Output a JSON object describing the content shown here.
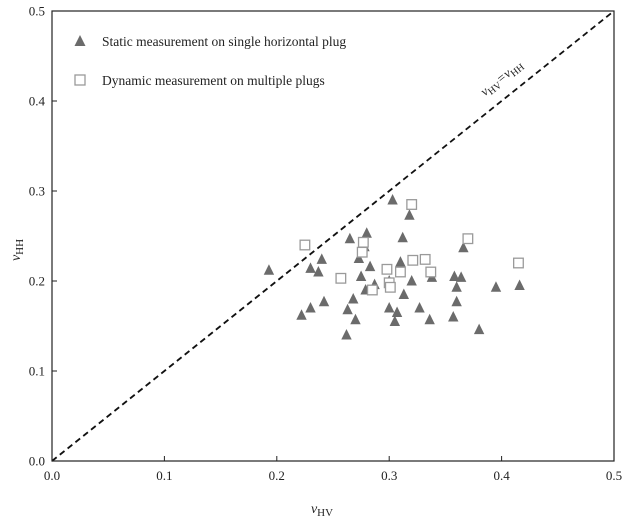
{
  "chart_data": {
    "type": "scatter",
    "title": "",
    "xlabel": "ν_HV",
    "ylabel": "ν_HH",
    "xlabel_main": "ν",
    "xlabel_sub": "HV",
    "ylabel_main": "ν",
    "ylabel_sub": "HH",
    "xlim": [
      0,
      0.5
    ],
    "ylim": [
      0,
      0.5
    ],
    "xticks": [
      0.0,
      0.1,
      0.2,
      0.3,
      0.4,
      0.5
    ],
    "yticks": [
      0.0,
      0.1,
      0.2,
      0.3,
      0.4,
      0.5
    ],
    "xtick_labels": [
      "0.0",
      "0.1",
      "0.2",
      "0.3",
      "0.4",
      "0.5"
    ],
    "ytick_labels": [
      "0.0",
      "0.1",
      "0.2",
      "0.3",
      "0.4",
      "0.5"
    ],
    "grid": false,
    "legend_position": "top-left",
    "reference_line": {
      "label_main_1": "ν",
      "label_sub_1": "HV",
      "label_eq": "=",
      "label_main_2": "ν",
      "label_sub_2": "HH",
      "x": [
        0,
        0.5
      ],
      "y": [
        0,
        0.5
      ]
    },
    "series": [
      {
        "name": "Static measurement on single horizontal plug",
        "marker": "filled-triangle",
        "color": "#6b6b6b",
        "points": [
          [
            0.193,
            0.212
          ],
          [
            0.222,
            0.162
          ],
          [
            0.23,
            0.214
          ],
          [
            0.23,
            0.17
          ],
          [
            0.237,
            0.21
          ],
          [
            0.24,
            0.224
          ],
          [
            0.242,
            0.177
          ],
          [
            0.262,
            0.14
          ],
          [
            0.263,
            0.168
          ],
          [
            0.265,
            0.247
          ],
          [
            0.268,
            0.18
          ],
          [
            0.27,
            0.157
          ],
          [
            0.273,
            0.225
          ],
          [
            0.275,
            0.205
          ],
          [
            0.278,
            0.238
          ],
          [
            0.279,
            0.19
          ],
          [
            0.28,
            0.253
          ],
          [
            0.283,
            0.216
          ],
          [
            0.287,
            0.196
          ],
          [
            0.3,
            0.2
          ],
          [
            0.3,
            0.17
          ],
          [
            0.303,
            0.29
          ],
          [
            0.305,
            0.155
          ],
          [
            0.307,
            0.165
          ],
          [
            0.31,
            0.221
          ],
          [
            0.312,
            0.248
          ],
          [
            0.313,
            0.185
          ],
          [
            0.318,
            0.273
          ],
          [
            0.32,
            0.2
          ],
          [
            0.327,
            0.17
          ],
          [
            0.336,
            0.157
          ],
          [
            0.338,
            0.204
          ],
          [
            0.357,
            0.16
          ],
          [
            0.358,
            0.205
          ],
          [
            0.36,
            0.193
          ],
          [
            0.36,
            0.177
          ],
          [
            0.364,
            0.204
          ],
          [
            0.366,
            0.237
          ],
          [
            0.38,
            0.146
          ],
          [
            0.395,
            0.193
          ],
          [
            0.416,
            0.195
          ]
        ]
      },
      {
        "name": "Dynamic measurement on multiple plugs",
        "marker": "open-square",
        "color": "#9a9a9a",
        "points": [
          [
            0.225,
            0.24
          ],
          [
            0.257,
            0.203
          ],
          [
            0.276,
            0.232
          ],
          [
            0.277,
            0.243
          ],
          [
            0.285,
            0.19
          ],
          [
            0.298,
            0.213
          ],
          [
            0.3,
            0.198
          ],
          [
            0.301,
            0.193
          ],
          [
            0.31,
            0.21
          ],
          [
            0.32,
            0.285
          ],
          [
            0.321,
            0.223
          ],
          [
            0.332,
            0.224
          ],
          [
            0.337,
            0.21
          ],
          [
            0.37,
            0.247
          ],
          [
            0.415,
            0.22
          ]
        ]
      }
    ]
  }
}
